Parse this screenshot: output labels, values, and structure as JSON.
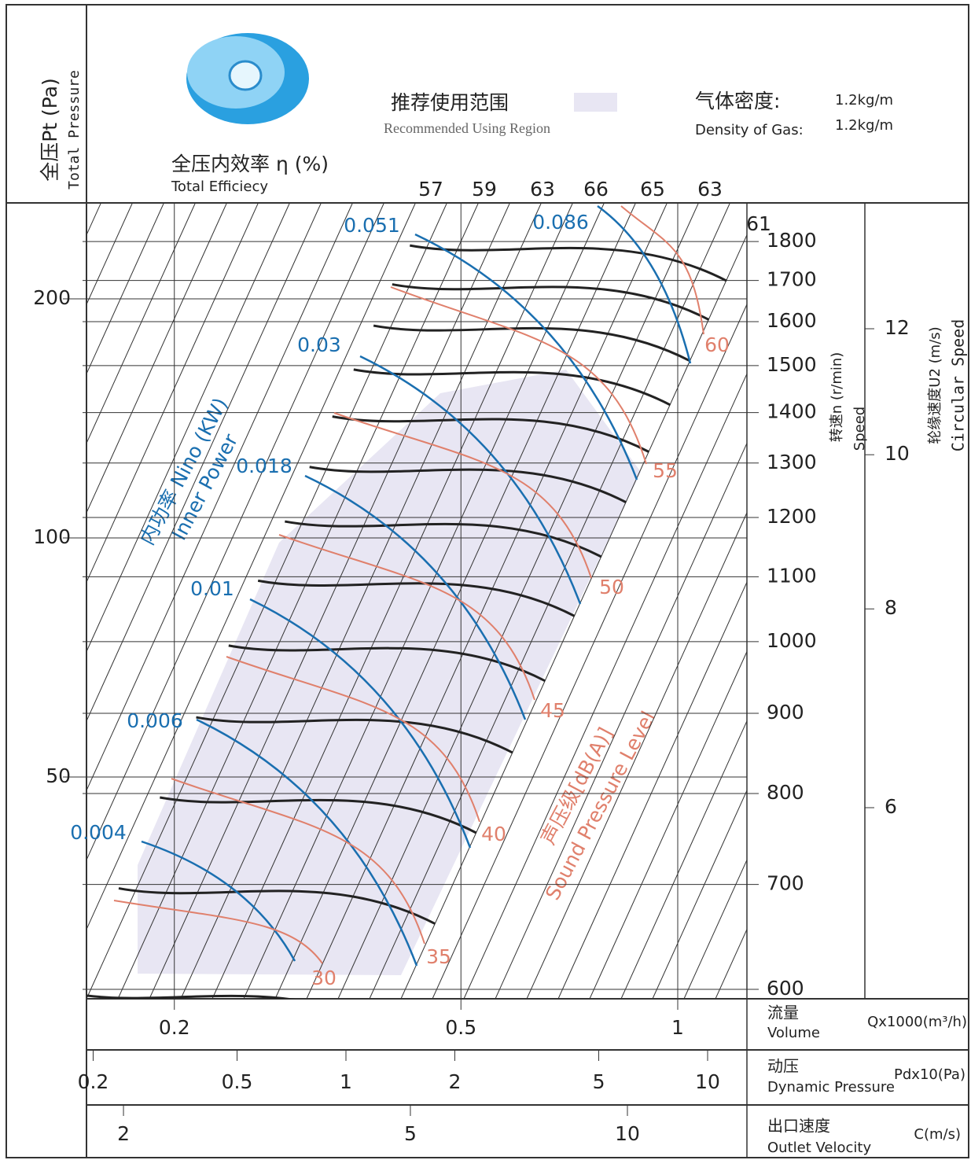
{
  "header": {
    "pressure_label_cn": "全压Pt (Pa)",
    "pressure_label_en": "Total Pressure",
    "efficiency_label_cn": "全压内效率 η (%)",
    "efficiency_label_en": "Total Efficiecy",
    "recommended_cn": "推荐使用范围",
    "recommended_en": "Recommended Using Region",
    "density_cn": "气体密度:",
    "density_en": "Density of Gas:",
    "density_value_1": "1.2kg/m",
    "density_value_2": "1.2kg/m"
  },
  "pressure_axis": {
    "ticks": [
      50,
      100,
      200
    ]
  },
  "speed_axis": {
    "label_cn": "转速n (r/min)",
    "label_en": "Speed",
    "ticks": [
      600,
      700,
      800,
      900,
      1000,
      1100,
      1200,
      1300,
      1400,
      1500,
      1600,
      1700,
      1800
    ]
  },
  "circular_speed_axis": {
    "label_cn": "轮缘速度U2 (m/s)",
    "label_en": "Circular Speed",
    "ticks": [
      6,
      8,
      10,
      12
    ]
  },
  "volume_axis": {
    "label_cn": "流量",
    "label_en": "Volume",
    "unit": "Qx1000(m³/h)",
    "ticks": [
      0.2,
      0.5,
      1
    ]
  },
  "dynamic_pressure_axis": {
    "label_cn": "动压",
    "label_en": "Dynamic Pressure",
    "unit": "Pdx10(Pa)",
    "ticks": [
      0.2,
      0.5,
      1,
      2,
      5,
      10
    ]
  },
  "outlet_velocity_axis": {
    "label_cn": "出口速度",
    "label_en": "Outlet Velocity",
    "unit": "C(m/s)",
    "ticks": [
      2,
      5,
      10
    ]
  },
  "efficiency_labels": [
    57,
    59,
    63,
    66,
    65,
    63,
    61
  ],
  "inner_power": {
    "label_cn": "内功率 Nino (KW)",
    "label_en": "Inner Power",
    "labels": [
      0.051,
      0.086,
      0.03,
      0.018,
      0.01,
      0.006,
      0.004
    ]
  },
  "sound_pressure": {
    "label_cn": "声压级[dB(A)]",
    "label_en": "Sound Pressure Level",
    "labels": [
      30,
      35,
      40,
      45,
      50,
      55,
      60
    ]
  }
}
